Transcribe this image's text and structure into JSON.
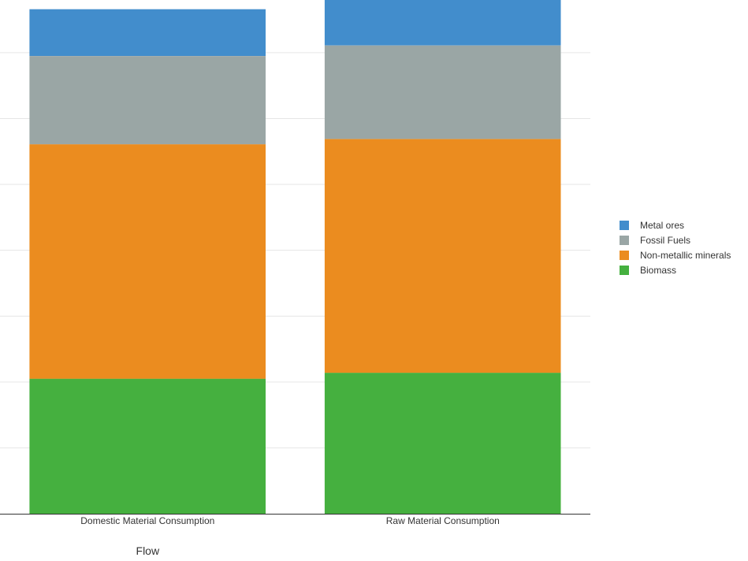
{
  "chart_data": {
    "type": "bar",
    "stacked": true,
    "categories": [
      "Domestic Material Consumption",
      "Raw Material Consumption"
    ],
    "series": [
      {
        "name": "Biomass",
        "color": "#45b03f",
        "values": [
          2.05,
          2.14
        ]
      },
      {
        "name": "Non-metallic minerals",
        "color": "#eb8c1f",
        "values": [
          3.56,
          3.55
        ]
      },
      {
        "name": "Fossil Fuels",
        "color": "#9aa6a5",
        "values": [
          1.34,
          1.42
        ]
      },
      {
        "name": "Metal ores",
        "color": "#428dcc",
        "values": [
          0.71,
          0.71
        ]
      }
    ],
    "xlabel": "Flow",
    "ylabel": "",
    "ylim": [
      0,
      7.8
    ],
    "grid": true,
    "legend_position": "right",
    "legend_order": [
      "Metal ores",
      "Fossil Fuels",
      "Non-metallic minerals",
      "Biomass"
    ]
  }
}
